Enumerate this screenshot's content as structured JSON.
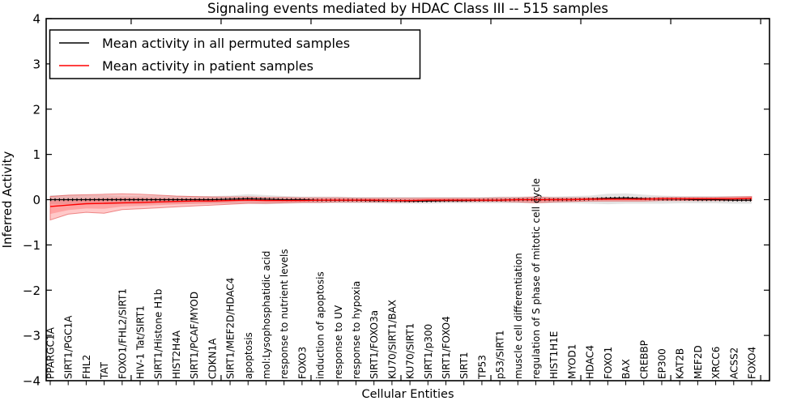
{
  "chart_data": {
    "type": "line",
    "title": "Signaling events mediated by HDAC Class III -- 515 samples",
    "xlabel": "Cellular Entities",
    "ylabel": "Inferred Activity",
    "ylim": [
      -4,
      4
    ],
    "yticks": [
      4,
      3,
      2,
      1,
      0,
      -1,
      -2,
      -3,
      -4
    ],
    "grid": false,
    "legend_position": "upper left",
    "categories": [
      "PPARGC1A",
      "SIRT1/PGC1A",
      "FHL2",
      "TAT",
      "FOXO1/FHL2/SIRT1",
      "HIV-1 Tat/SIRT1",
      "SIRT1/Histone H1b",
      "HIST2H4A",
      "SIRT1/PCAF/MYOD",
      "CDKN1A",
      "SIRT1/MEF2D/HDAC4",
      "apoptosis",
      "mol:Lysophosphatidic acid",
      "response to nutrient levels",
      "FOXO3",
      "induction of apoptosis",
      "response to UV",
      "response to hypoxia",
      "SIRT1/FOXO3a",
      "KU70/SIRT1/BAX",
      "KU70/SIRT1",
      "SIRT1/p300",
      "SIRT1/FOXO4",
      "SIRT1",
      "TP53",
      "p53/SIRT1",
      "muscle cell differentiation",
      "regulation of S phase of mitotic cell cycle",
      "HIST1H1E",
      "MYOD1",
      "HDAC4",
      "FOXO1",
      "BAX",
      "CREBBP",
      "EP300",
      "KAT2B",
      "MEF2D",
      "XRCC6",
      "ACSS2",
      "FOXO4"
    ],
    "series": [
      {
        "name": "Mean activity in all permuted samples",
        "color": "#000000",
        "band_color": "#b0b0b0",
        "band_opacity": 0.35,
        "values": [
          0.0,
          0.0,
          0.0,
          0.0,
          0.0,
          0.0,
          0.0,
          0.0,
          0.0,
          0.0,
          0.01,
          0.02,
          0.01,
          0.0,
          0.0,
          -0.01,
          -0.01,
          -0.01,
          -0.02,
          -0.02,
          -0.03,
          -0.03,
          -0.02,
          -0.02,
          -0.01,
          -0.01,
          0.0,
          0.0,
          0.0,
          0.0,
          0.01,
          0.03,
          0.04,
          0.02,
          0.01,
          0.01,
          0.0,
          0.0,
          -0.01,
          -0.01
        ],
        "band_upper": [
          0.1,
          0.1,
          0.1,
          0.1,
          0.09,
          0.09,
          0.09,
          0.08,
          0.08,
          0.08,
          0.09,
          0.12,
          0.1,
          0.08,
          0.07,
          0.07,
          0.07,
          0.06,
          0.06,
          0.06,
          0.06,
          0.06,
          0.06,
          0.06,
          0.06,
          0.07,
          0.07,
          0.07,
          0.07,
          0.08,
          0.09,
          0.13,
          0.14,
          0.11,
          0.09,
          0.08,
          0.08,
          0.08,
          0.08,
          0.08
        ],
        "band_lower": [
          -0.1,
          -0.1,
          -0.1,
          -0.1,
          -0.1,
          -0.1,
          -0.09,
          -0.09,
          -0.09,
          -0.09,
          -0.09,
          -0.09,
          -0.1,
          -0.09,
          -0.08,
          -0.08,
          -0.08,
          -0.08,
          -0.08,
          -0.09,
          -0.09,
          -0.09,
          -0.08,
          -0.08,
          -0.08,
          -0.08,
          -0.08,
          -0.08,
          -0.08,
          -0.08,
          -0.09,
          -0.1,
          -0.09,
          -0.09,
          -0.09,
          -0.08,
          -0.08,
          -0.08,
          -0.09,
          -0.09
        ]
      },
      {
        "name": "Mean activity in patient samples",
        "color": "#ff0000",
        "band_color": "#ff4d4d",
        "band_opacity": 0.3,
        "values": [
          -0.15,
          -0.12,
          -0.09,
          -0.08,
          -0.07,
          -0.06,
          -0.05,
          -0.04,
          -0.03,
          -0.03,
          -0.02,
          -0.01,
          -0.02,
          -0.02,
          -0.02,
          -0.01,
          -0.01,
          -0.01,
          -0.01,
          -0.02,
          -0.02,
          -0.01,
          -0.01,
          -0.01,
          -0.01,
          -0.01,
          0.0,
          0.0,
          0.0,
          0.0,
          0.01,
          0.01,
          0.01,
          0.01,
          0.02,
          0.02,
          0.02,
          0.02,
          0.02,
          0.03
        ],
        "band_upper": [
          0.07,
          0.1,
          0.11,
          0.12,
          0.13,
          0.12,
          0.1,
          0.08,
          0.07,
          0.06,
          0.06,
          0.06,
          0.05,
          0.05,
          0.04,
          0.04,
          0.04,
          0.03,
          0.03,
          0.03,
          0.03,
          0.03,
          0.03,
          0.03,
          0.03,
          0.04,
          0.04,
          0.06,
          0.04,
          0.04,
          0.04,
          0.04,
          0.04,
          0.04,
          0.05,
          0.05,
          0.05,
          0.05,
          0.06,
          0.07
        ],
        "band_lower": [
          -0.45,
          -0.32,
          -0.28,
          -0.3,
          -0.22,
          -0.2,
          -0.18,
          -0.16,
          -0.14,
          -0.12,
          -0.1,
          -0.08,
          -0.08,
          -0.07,
          -0.06,
          -0.06,
          -0.05,
          -0.05,
          -0.05,
          -0.05,
          -0.05,
          -0.04,
          -0.04,
          -0.04,
          -0.04,
          -0.04,
          -0.05,
          -0.07,
          -0.05,
          -0.04,
          -0.03,
          -0.03,
          -0.03,
          -0.03,
          -0.02,
          -0.02,
          -0.02,
          -0.02,
          -0.02,
          -0.02
        ]
      }
    ]
  },
  "colors": {
    "background": "#ffffff",
    "axis": "#000000",
    "permuted_line": "#000000",
    "patient_line": "#ff0000",
    "permuted_band": "#b0b0b0",
    "patient_band": "#ff4d4d",
    "patient_band_edge": "#e03a3a"
  }
}
